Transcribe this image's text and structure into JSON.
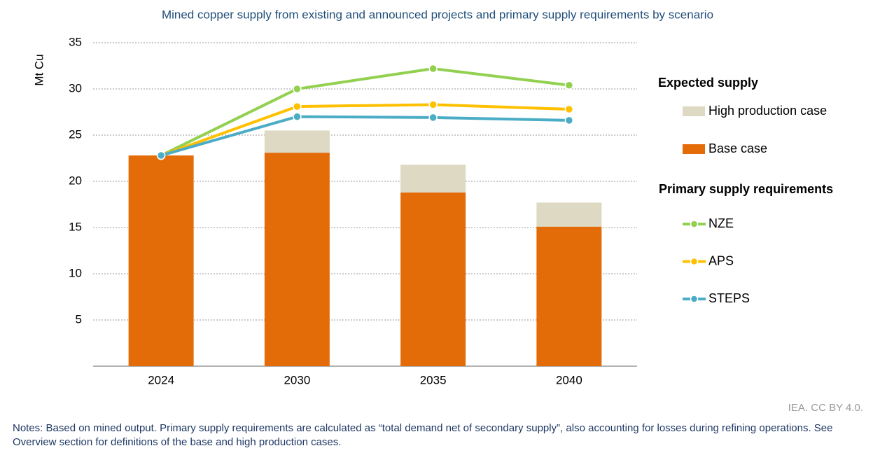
{
  "chart_data": {
    "type": "bar",
    "title": "Mined copper supply from existing and announced projects and primary supply requirements by scenario",
    "y_label": "Mt Cu",
    "categories": [
      "2024",
      "2030",
      "2035",
      "2040"
    ],
    "series": [
      {
        "name": "Base case",
        "type": "bar",
        "color": "#e36c09",
        "values": [
          22.8,
          23.1,
          18.8,
          15.1
        ]
      },
      {
        "name": "High production case",
        "type": "bar",
        "color": "#ddd9c3",
        "values": [
          null,
          2.4,
          3.0,
          2.6
        ]
      },
      {
        "name": "NZE",
        "type": "line",
        "color": "#92d050",
        "values": [
          22.8,
          30.0,
          32.2,
          30.4
        ]
      },
      {
        "name": "APS",
        "type": "line",
        "color": "#ffc000",
        "values": [
          22.8,
          28.1,
          28.3,
          27.8
        ]
      },
      {
        "name": "STEPS",
        "type": "line",
        "color": "#4bacc6",
        "values": [
          22.8,
          27.0,
          26.9,
          26.6
        ]
      }
    ],
    "legend_titles": [
      "Expected supply",
      "Primary supply requirements"
    ],
    "ylim": [
      0,
      35
    ],
    "yticks": [
      5,
      10,
      15,
      20,
      25,
      30,
      35
    ],
    "grid": true,
    "source": "IEA. CC BY 4.0.",
    "note": "Notes: Based on mined output. Primary supply requirements are calculated as “total demand net of secondary supply”, also accounting for losses during refining operations. See Overview section for definitions of the base and high production cases."
  }
}
